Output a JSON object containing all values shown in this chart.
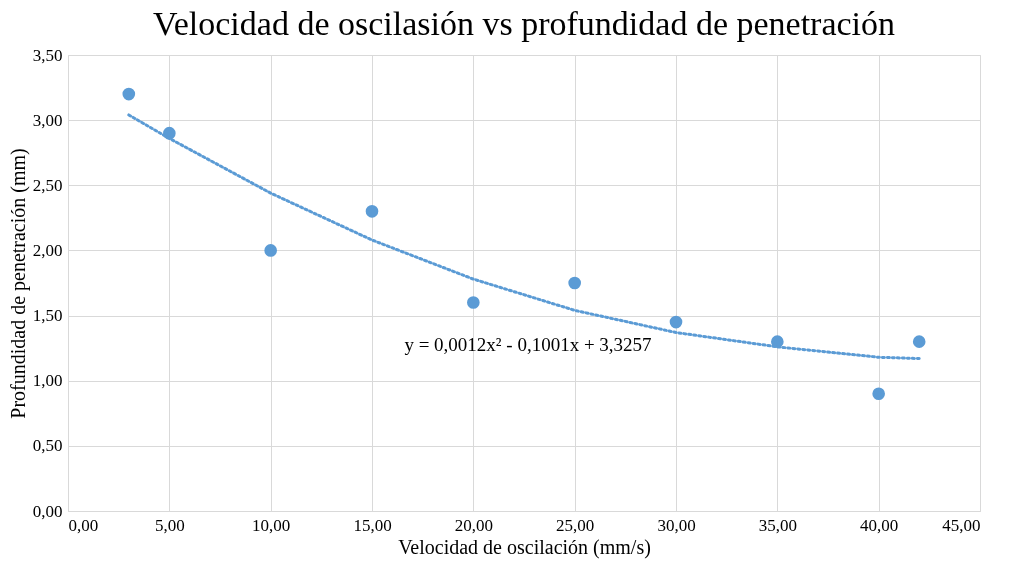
{
  "chart_data": {
    "type": "scatter",
    "title": "Velocidad de oscilasión vs profundidad de penetración",
    "xlabel": "Velocidad de oscilación (mm/s)",
    "ylabel": "Profundidad de penetración (mm)",
    "x": [
      3,
      5,
      10,
      15,
      20,
      25,
      30,
      35,
      40,
      42
    ],
    "series": [
      {
        "color": "#5b9bd5",
        "values": [
          3.2,
          2.9,
          2.0,
          2.3,
          1.6,
          1.75,
          1.45,
          1.3,
          0.9,
          1.3
        ]
      },
      {
        "type": "line",
        "color": "#5b9bd5",
        "line_style": "dotted",
        "marker": "none",
        "x": [
          3,
          5,
          10,
          15,
          20,
          25,
          30,
          35,
          40,
          42
        ],
        "values": [
          3.04,
          2.86,
          2.44,
          2.08,
          1.78,
          1.54,
          1.37,
          1.26,
          1.18,
          1.17
        ]
      }
    ],
    "marker": "circle",
    "grid": true,
    "annotations": [
      "y = 0,0012x² - 0,1001x + 3,3257"
    ],
    "xlim": [
      0,
      45
    ],
    "ylim": [
      0,
      3.5
    ],
    "xticks": [
      {
        "value": 0,
        "label": "0,00"
      },
      {
        "value": 5,
        "label": "5,00"
      },
      {
        "value": 10,
        "label": "10,00"
      },
      {
        "value": 15,
        "label": "15,00"
      },
      {
        "value": 20,
        "label": "20,00"
      },
      {
        "value": 25,
        "label": "25,00"
      },
      {
        "value": 30,
        "label": "30,00"
      },
      {
        "value": 35,
        "label": "35,00"
      },
      {
        "value": 40,
        "label": "40,00"
      },
      {
        "value": 45,
        "label": "45,00"
      }
    ],
    "yticks": [
      {
        "value": 0,
        "label": "0,00"
      },
      {
        "value": 0.5,
        "label": "0,50"
      },
      {
        "value": 1,
        "label": "1,00"
      },
      {
        "value": 1.5,
        "label": "1,50"
      },
      {
        "value": 2,
        "label": "2,00"
      },
      {
        "value": 2.5,
        "label": "2,50"
      },
      {
        "value": 3,
        "label": "3,00"
      },
      {
        "value": 3.5,
        "label": "3,50"
      }
    ]
  }
}
